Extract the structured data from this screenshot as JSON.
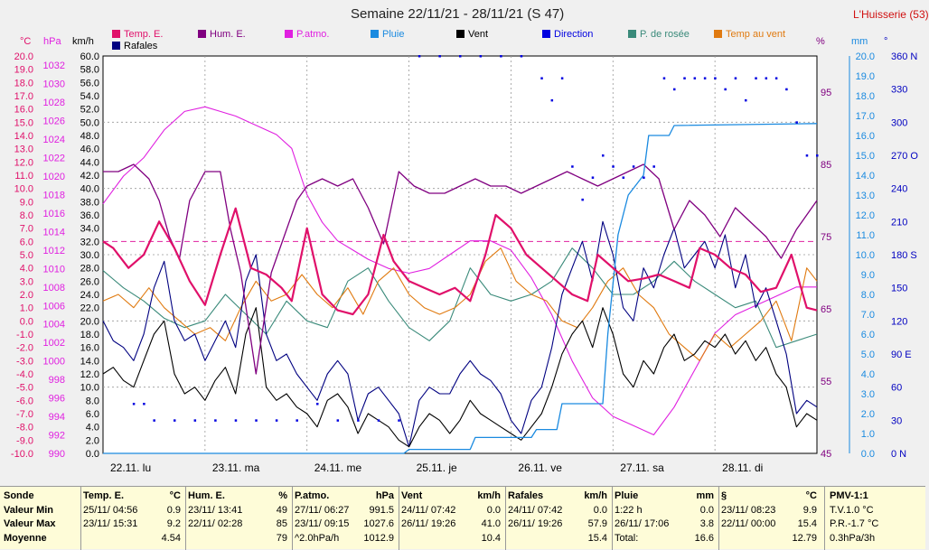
{
  "title": "Semaine 22/11/21 - 28/11/21 (S 47)",
  "station": "L'Huisserie (53)",
  "legend": [
    {
      "label": "Temp. E.",
      "color": "#e0106a"
    },
    {
      "label": "Hum. E.",
      "color": "#800080"
    },
    {
      "label": "P.atmo.",
      "color": "#e020e0"
    },
    {
      "label": "Pluie",
      "color": "#1a8ae0"
    },
    {
      "label": "Vent",
      "color": "#000000"
    },
    {
      "label": "Direction",
      "color": "#0000e0"
    },
    {
      "label": "P. de rosée",
      "color": "#3a8a7a"
    },
    {
      "label": "Temp au vent",
      "color": "#e07a10"
    },
    {
      "label": "Rafales",
      "color": "#000080"
    }
  ],
  "axis_units": {
    "temp": "°C",
    "press": "hPa",
    "wind": "km/h",
    "hum": "%",
    "rain": "mm",
    "dir": "°"
  },
  "chart_data": {
    "type": "line",
    "temp_ticks": [
      "20.0",
      "19.0",
      "18.0",
      "17.0",
      "16.0",
      "15.0",
      "14.0",
      "13.0",
      "12.0",
      "11.0",
      "10.0",
      "9.0",
      "8.0",
      "7.0",
      "6.0",
      "5.0",
      "4.0",
      "3.0",
      "2.0",
      "1.0",
      "0.0",
      "-1.0",
      "-2.0",
      "-3.0",
      "-4.0",
      "-5.0",
      "-6.0",
      "-7.0",
      "-8.0",
      "-9.0",
      "-10.0"
    ],
    "press_ticks": [
      "1032",
      "1030",
      "1028",
      "1026",
      "1024",
      "1022",
      "1020",
      "1018",
      "1016",
      "1014",
      "1012",
      "1010",
      "1008",
      "1006",
      "1004",
      "1002",
      "1000",
      "998",
      "996",
      "994",
      "992",
      "990"
    ],
    "wind_ticks": [
      "60.0",
      "58.0",
      "56.0",
      "54.0",
      "52.0",
      "50.0",
      "48.0",
      "46.0",
      "44.0",
      "42.0",
      "40.0",
      "38.0",
      "36.0",
      "34.0",
      "32.0",
      "30.0",
      "28.0",
      "26.0",
      "24.0",
      "22.0",
      "20.0",
      "18.0",
      "16.0",
      "14.0",
      "12.0",
      "10.0",
      "8.0",
      "6.0",
      "4.0",
      "2.0",
      "0.0"
    ],
    "hum_ticks": [
      "95",
      "85",
      "75",
      "65",
      "55",
      "45"
    ],
    "rain_ticks": [
      "20.0",
      "19.0",
      "18.0",
      "17.0",
      "16.0",
      "15.0",
      "14.0",
      "13.0",
      "12.0",
      "11.0",
      "10.0",
      "9.0",
      "8.0",
      "7.0",
      "6.0",
      "5.0",
      "4.0",
      "3.0",
      "2.0",
      "1.0",
      "0.0"
    ],
    "dir_ticks": [
      "360 N",
      "330",
      "300",
      "270 O",
      "240",
      "210",
      "180 S",
      "150",
      "120",
      "90 E",
      "60",
      "30",
      "0 N"
    ],
    "x_labels": [
      "22.11. lu",
      "23.11. ma",
      "24.11. me",
      "25.11. je",
      "26.11. ve",
      "27.11. sa",
      "28.11. di"
    ],
    "temp_range": [
      -10,
      20
    ],
    "press_range": [
      990,
      1033
    ],
    "wind_range": [
      0,
      60
    ],
    "hum_range": [
      45,
      100
    ],
    "rain_range": [
      0,
      20
    ],
    "dir_range": [
      0,
      360
    ],
    "reference_temp": 6.0,
    "series": [
      {
        "name": "Temp. E.",
        "axis": "temp",
        "color": "#e0106a",
        "width": 2.2,
        "x": [
          0,
          0.1,
          0.25,
          0.4,
          0.55,
          0.7,
          0.85,
          1,
          1.15,
          1.3,
          1.45,
          1.6,
          1.75,
          1.85,
          2,
          2.15,
          2.3,
          2.45,
          2.6,
          2.75,
          2.85,
          3,
          3.15,
          3.3,
          3.45,
          3.6,
          3.75,
          3.85,
          4,
          4.15,
          4.3,
          4.45,
          4.6,
          4.75,
          4.85,
          5,
          5.15,
          5.3,
          5.45,
          5.6,
          5.75,
          5.85,
          6,
          6.15,
          6.3,
          6.45,
          6.6,
          6.75,
          6.9,
          7
        ],
        "y": [
          6,
          5.5,
          4,
          5,
          7.5,
          5.5,
          3,
          1.2,
          5,
          8.5,
          4,
          3.5,
          2.5,
          1.5,
          7,
          2,
          0.8,
          0.5,
          2,
          6.5,
          4.5,
          3,
          2.5,
          2,
          2.5,
          1.5,
          5,
          8,
          7,
          5,
          4,
          3,
          2,
          1.5,
          5,
          4,
          3,
          3.2,
          3.5,
          3,
          2.5,
          5.5,
          5,
          4,
          3.5,
          2.2,
          2.5,
          5,
          1,
          0.8
        ]
      },
      {
        "name": "Hum. E.",
        "axis": "hum",
        "color": "#800080",
        "width": 1.3,
        "x": [
          0,
          0.15,
          0.3,
          0.45,
          0.55,
          0.65,
          0.75,
          0.85,
          1,
          1.15,
          1.25,
          1.35,
          1.5,
          1.65,
          1.75,
          1.9,
          2,
          2.15,
          2.3,
          2.45,
          2.6,
          2.75,
          2.9,
          3.05,
          3.2,
          3.35,
          3.5,
          3.65,
          3.8,
          3.95,
          4.1,
          4.25,
          4.4,
          4.55,
          4.7,
          4.85,
          5,
          5.15,
          5.3,
          5.45,
          5.6,
          5.75,
          5.9,
          6.05,
          6.2,
          6.35,
          6.5,
          6.65,
          6.8,
          7
        ],
        "y": [
          84,
          84,
          85,
          83,
          80,
          75,
          72,
          80,
          84,
          84,
          76,
          70,
          56,
          70,
          74,
          80,
          82,
          83,
          82,
          83,
          79,
          74,
          84,
          82,
          81,
          81,
          82,
          83,
          82,
          82,
          81,
          82,
          83,
          84,
          83,
          82,
          83,
          84,
          85,
          83,
          76,
          80,
          78,
          75,
          79,
          77,
          75,
          72,
          76,
          80
        ]
      },
      {
        "name": "P.atmo.",
        "axis": "press",
        "color": "#e020e0",
        "width": 1.1,
        "x": [
          0,
          0.2,
          0.4,
          0.6,
          0.8,
          1,
          1.15,
          1.3,
          1.5,
          1.7,
          1.85,
          2,
          2.15,
          2.3,
          2.45,
          2.6,
          2.8,
          3,
          3.2,
          3.4,
          3.6,
          3.8,
          4,
          4.2,
          4.4,
          4.6,
          4.8,
          5,
          5.2,
          5.4,
          5.6,
          5.8,
          6,
          6.2,
          6.4,
          6.6,
          6.8,
          7
        ],
        "y": [
          1017,
          1020,
          1022,
          1025,
          1027,
          1027.5,
          1027,
          1026.5,
          1025.5,
          1024.5,
          1023,
          1018,
          1015,
          1013,
          1012,
          1011,
          1010,
          1009.5,
          1010,
          1011.5,
          1013,
          1013,
          1012,
          1009,
          1005,
          1000,
          996,
          994,
          993,
          992,
          995,
          999,
          1003,
          1005,
          1006,
          1007,
          1008,
          1008
        ]
      },
      {
        "name": "P. de rosée",
        "axis": "temp",
        "color": "#3a8a7a",
        "width": 1.1,
        "x": [
          0,
          0.2,
          0.4,
          0.6,
          0.8,
          1,
          1.2,
          1.4,
          1.6,
          1.8,
          2,
          2.2,
          2.4,
          2.6,
          2.8,
          3,
          3.2,
          3.4,
          3.6,
          3.8,
          4,
          4.2,
          4.4,
          4.6,
          4.8,
          5,
          5.2,
          5.4,
          5.6,
          5.8,
          6,
          6.2,
          6.4,
          6.6,
          6.8,
          7
        ],
        "y": [
          3.8,
          2.5,
          1.5,
          0.2,
          -0.5,
          0,
          2,
          0.5,
          -1,
          1.5,
          0,
          -0.5,
          3,
          4,
          1.5,
          -0.5,
          -1.5,
          0,
          4,
          2,
          1.5,
          2,
          3,
          5.5,
          4,
          2,
          2,
          3,
          4.5,
          3,
          2,
          1,
          1.5,
          -2,
          -1.5,
          -1
        ]
      },
      {
        "name": "Temp au vent",
        "axis": "temp",
        "color": "#e07a10",
        "width": 1.1,
        "x": [
          0,
          0.15,
          0.3,
          0.45,
          0.6,
          0.75,
          0.9,
          1.05,
          1.2,
          1.35,
          1.5,
          1.65,
          1.8,
          1.95,
          2.1,
          2.25,
          2.4,
          2.55,
          2.7,
          2.85,
          3,
          3.15,
          3.3,
          3.45,
          3.6,
          3.75,
          3.9,
          4.05,
          4.2,
          4.35,
          4.5,
          4.65,
          4.8,
          4.95,
          5.1,
          5.25,
          5.4,
          5.55,
          5.7,
          5.85,
          6,
          6.15,
          6.3,
          6.45,
          6.6,
          6.75,
          6.9,
          7
        ],
        "y": [
          1.5,
          2,
          1,
          2.5,
          1,
          0,
          -1,
          -0.5,
          -1.5,
          1,
          3,
          1.5,
          2,
          3.5,
          2,
          1,
          2.5,
          0.5,
          3,
          4,
          2,
          1,
          0.5,
          1,
          2,
          4.5,
          5.5,
          3,
          2,
          1.5,
          0,
          -0.5,
          1,
          3,
          4,
          2,
          1,
          -1,
          -2,
          -3,
          -1,
          -2,
          -1,
          0,
          1.5,
          -1.5,
          4,
          3
        ]
      },
      {
        "name": "Vent",
        "axis": "wind",
        "color": "#000000",
        "width": 1.1,
        "x": [
          0,
          0.1,
          0.2,
          0.3,
          0.4,
          0.5,
          0.6,
          0.7,
          0.8,
          0.9,
          1,
          1.1,
          1.2,
          1.3,
          1.4,
          1.5,
          1.6,
          1.7,
          1.8,
          1.9,
          2,
          2.1,
          2.2,
          2.3,
          2.4,
          2.5,
          2.6,
          2.7,
          2.8,
          2.9,
          3,
          3.1,
          3.2,
          3.3,
          3.4,
          3.5,
          3.6,
          3.7,
          3.8,
          3.9,
          4,
          4.1,
          4.2,
          4.3,
          4.4,
          4.5,
          4.6,
          4.7,
          4.8,
          4.9,
          5,
          5.1,
          5.2,
          5.3,
          5.4,
          5.5,
          5.6,
          5.7,
          5.8,
          5.9,
          6,
          6.1,
          6.2,
          6.3,
          6.4,
          6.5,
          6.6,
          6.7,
          6.8,
          6.9,
          7
        ],
        "y": [
          12,
          13,
          11,
          10,
          14,
          18,
          20,
          12,
          9,
          10,
          8,
          11,
          13,
          9,
          18,
          22,
          10,
          8,
          9,
          7,
          6,
          4,
          8,
          9,
          7,
          3,
          6,
          5,
          4,
          2,
          1,
          4,
          6,
          5,
          3,
          5,
          8,
          6,
          5,
          4,
          3,
          2,
          4,
          6,
          10,
          15,
          18,
          20,
          16,
          22,
          18,
          12,
          10,
          14,
          12,
          16,
          18,
          14,
          15,
          17,
          16,
          18,
          15,
          17,
          14,
          16,
          12,
          10,
          4,
          6,
          5
        ]
      },
      {
        "name": "Rafales",
        "axis": "wind",
        "color": "#000080",
        "width": 1.1,
        "x": [
          0,
          0.1,
          0.2,
          0.3,
          0.4,
          0.5,
          0.6,
          0.7,
          0.8,
          0.9,
          1,
          1.1,
          1.2,
          1.3,
          1.4,
          1.5,
          1.6,
          1.7,
          1.8,
          1.9,
          2,
          2.1,
          2.2,
          2.3,
          2.4,
          2.5,
          2.6,
          2.7,
          2.8,
          2.9,
          3,
          3.1,
          3.2,
          3.3,
          3.4,
          3.5,
          3.6,
          3.7,
          3.8,
          3.9,
          4,
          4.1,
          4.2,
          4.3,
          4.4,
          4.5,
          4.6,
          4.7,
          4.8,
          4.9,
          5,
          5.1,
          5.2,
          5.3,
          5.4,
          5.5,
          5.6,
          5.7,
          5.8,
          5.9,
          6,
          6.1,
          6.2,
          6.3,
          6.4,
          6.5,
          6.6,
          6.7,
          6.8,
          6.9,
          7
        ],
        "y": [
          20,
          17,
          16,
          14,
          18,
          25,
          29,
          20,
          17,
          18,
          14,
          17,
          20,
          16,
          26,
          30,
          18,
          14,
          15,
          12,
          10,
          8,
          12,
          14,
          12,
          5,
          9,
          10,
          8,
          6,
          1,
          8,
          10,
          9,
          9,
          12,
          14,
          12,
          11,
          9,
          5,
          3,
          8,
          10,
          16,
          24,
          28,
          32,
          26,
          35,
          30,
          22,
          20,
          28,
          25,
          30,
          34,
          28,
          30,
          32,
          28,
          33,
          25,
          30,
          22,
          25,
          20,
          15,
          6,
          8,
          7
        ]
      },
      {
        "name": "Pluie",
        "axis": "rain",
        "color": "#1a8ae0",
        "width": 1.3,
        "x": [
          0,
          2.95,
          3,
          3.6,
          3.65,
          4.2,
          4.25,
          4.45,
          4.5,
          4.9,
          4.95,
          5.05,
          5.15,
          5.3,
          5.35,
          5.55,
          5.6,
          7
        ],
        "y": [
          0,
          0,
          0.2,
          0.2,
          0.8,
          0.8,
          1.2,
          1.2,
          2.5,
          2.5,
          6,
          11,
          13,
          14,
          16,
          16,
          16.5,
          16.6
        ]
      },
      {
        "name": "Direction",
        "axis": "dir",
        "color": "#0000e0",
        "width": 0,
        "x": [
          0.3,
          0.4,
          0.5,
          0.7,
          0.9,
          1.1,
          1.3,
          1.5,
          1.7,
          1.9,
          2.1,
          2.3,
          2.5,
          2.7,
          2.9,
          3.1,
          3.3,
          3.5,
          3.7,
          3.9,
          4.1,
          4.3,
          4.4,
          4.5,
          4.6,
          4.7,
          4.8,
          4.9,
          5,
          5.1,
          5.2,
          5.3,
          5.4,
          5.5,
          5.6,
          5.7,
          5.8,
          5.9,
          6,
          6.1,
          6.2,
          6.3,
          6.4,
          6.5,
          6.6,
          6.7,
          6.8,
          6.9,
          7
        ],
        "y": [
          45,
          45,
          30,
          30,
          30,
          30,
          30,
          30,
          30,
          30,
          45,
          30,
          30,
          30,
          30,
          360,
          360,
          360,
          360,
          360,
          360,
          340,
          320,
          340,
          260,
          230,
          250,
          270,
          260,
          250,
          260,
          250,
          260,
          340,
          330,
          340,
          340,
          340,
          340,
          330,
          340,
          320,
          340,
          340,
          340,
          330,
          300,
          270,
          270
        ]
      }
    ]
  },
  "stats": {
    "labels": {
      "title": "Sonde",
      "min": "Valeur Min",
      "max": "Valeur Max",
      "avg": "Moyenne"
    },
    "cols": [
      {
        "name": "Temp. E.",
        "unit": "°C",
        "min_date": "25/11/ 04:56",
        "min_val": "0.9",
        "max_date": "23/11/ 15:31",
        "max_val": "9.2",
        "avg_val": "4.54"
      },
      {
        "name": "Hum. E.",
        "unit": "%",
        "min_date": "23/11/ 13:41",
        "min_val": "49",
        "max_date": "22/11/ 02:28",
        "max_val": "85",
        "avg_val": "79"
      },
      {
        "name": "P.atmo.",
        "unit": "hPa",
        "min_date": "27/11/ 06:27",
        "min_val": "991.5",
        "max_date": "23/11/ 09:15",
        "max_val": "1027.6",
        "avg_label": "^2.0hPa/h",
        "avg_val": "1012.9"
      },
      {
        "name": "Vent",
        "unit": "km/h",
        "min_date": "24/11/ 07:42",
        "min_val": "0.0",
        "max_date": "26/11/ 19:26",
        "max_val": "41.0",
        "avg_val": "10.4"
      },
      {
        "name": "Rafales",
        "unit": "km/h",
        "min_date": "24/11/ 07:42",
        "min_val": "0.0",
        "max_date": "26/11/ 19:26",
        "max_val": "57.9",
        "avg_val": "15.4"
      },
      {
        "name": "Pluie",
        "unit": "mm",
        "min_date": "1:22 h",
        "min_val": "0.0",
        "max_date": "26/11/ 17:06",
        "max_val": "3.8",
        "avg_label": "Total:",
        "avg_val": "16.6"
      },
      {
        "name": "§",
        "unit": "°C",
        "min_date": "23/11/ 08:23",
        "min_val": "9.9",
        "max_date": "22/11/ 00:00",
        "max_val": "15.4",
        "avg_val": "12.79"
      }
    ],
    "pmv": {
      "title": "PMV-1:1",
      "l1": "T.V.1.0 °C",
      "l2": "P.R.-1.7 °C",
      "l3": "0.3hPa/3h"
    }
  }
}
